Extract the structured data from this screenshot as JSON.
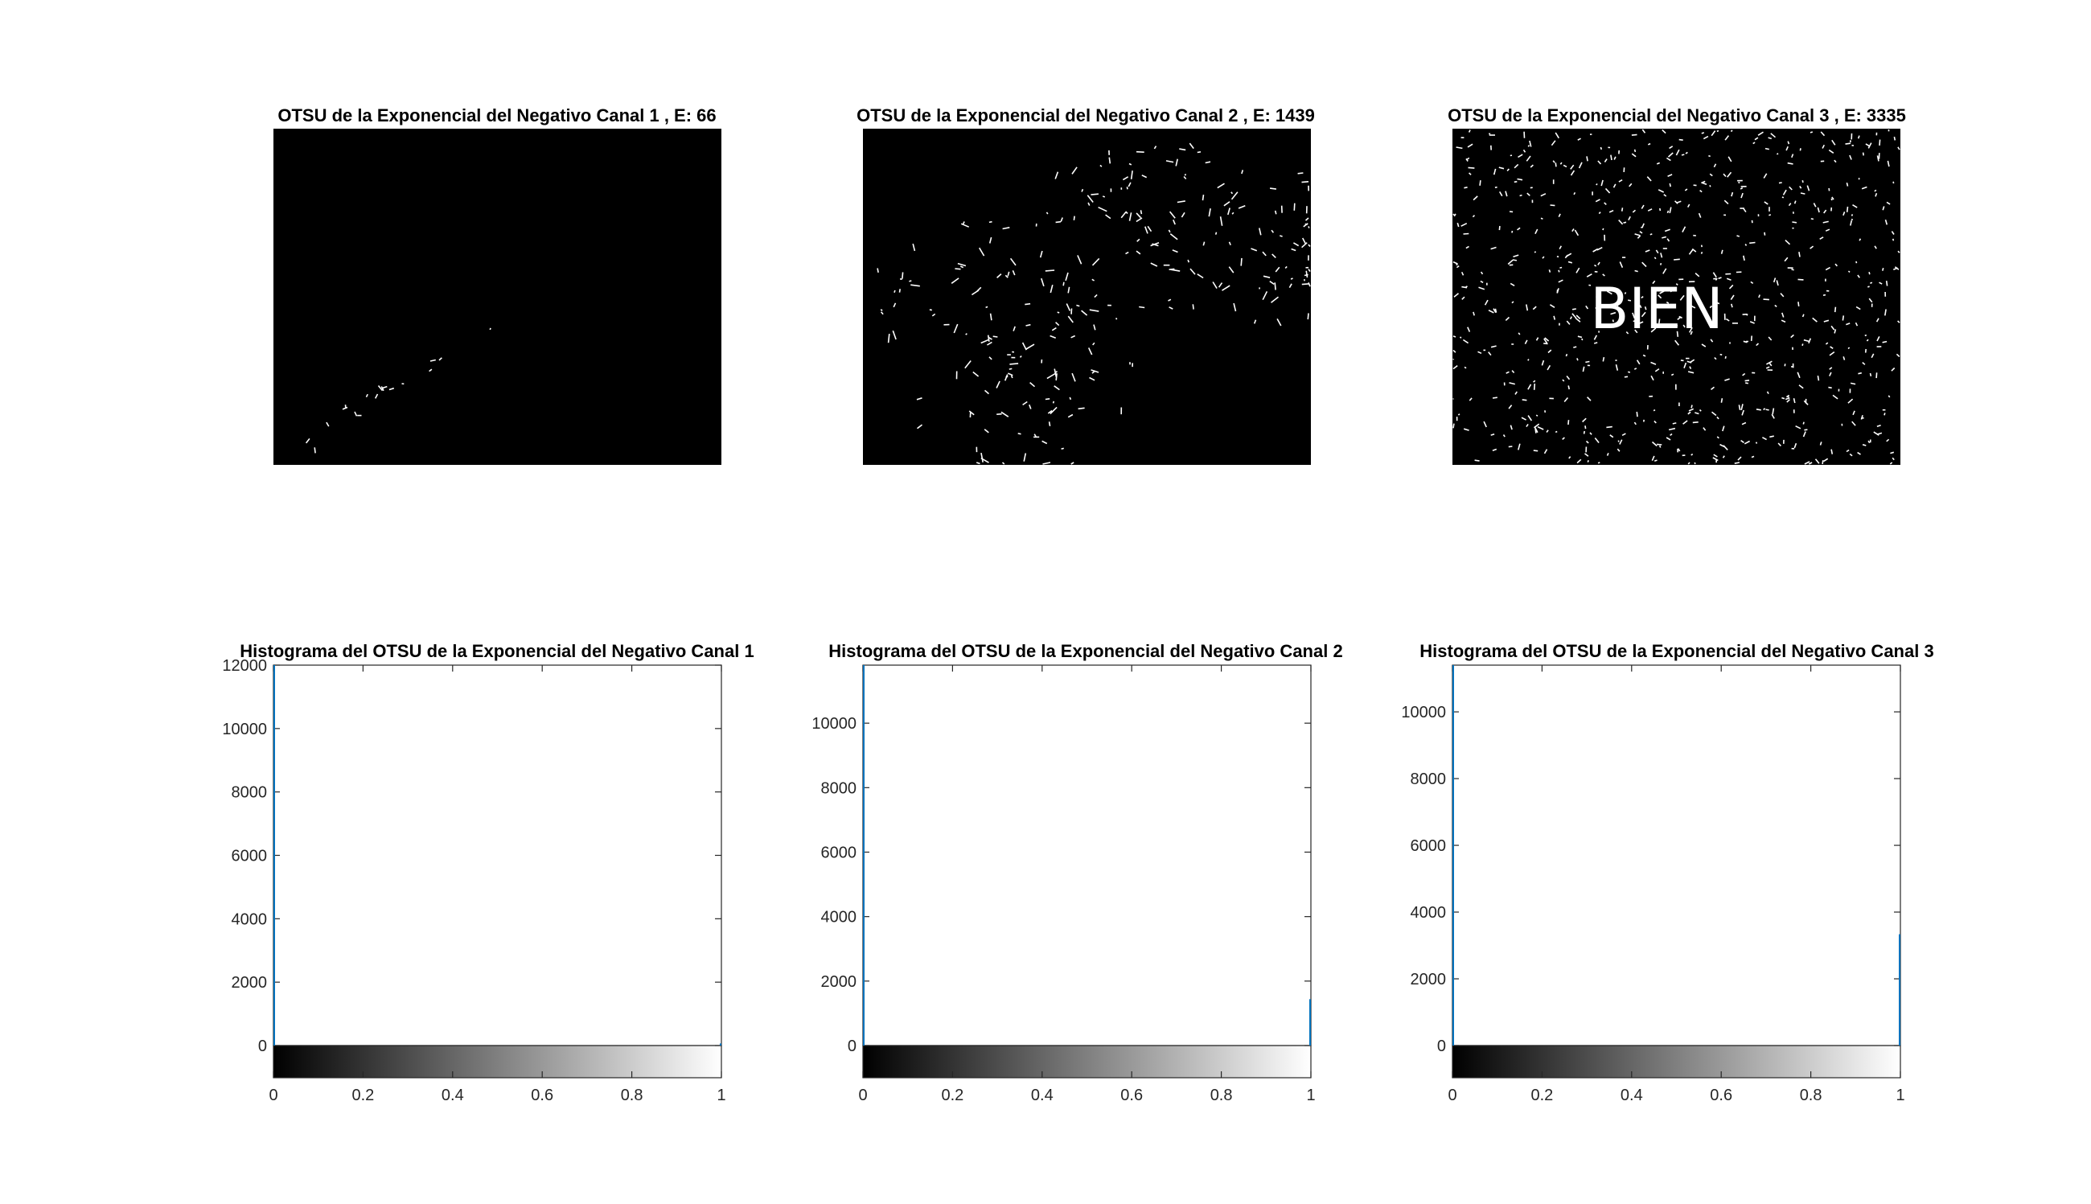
{
  "images": [
    {
      "title": "OTSU de la Exponencial del Negativo Canal 1 , E: 66",
      "density": 0.0015,
      "overlay_text": ""
    },
    {
      "title": "OTSU de la Exponencial del Negativo Canal 2 , E: 1439",
      "density": 0.022,
      "overlay_text": ""
    },
    {
      "title": "OTSU de la Exponencial del Negativo Canal 3 , E: 3335",
      "density": 0.06,
      "overlay_text": "BIEN"
    }
  ],
  "chart_data": [
    {
      "type": "bar",
      "title": "Histograma del OTSU de la Exponencial del Negativo Canal 1",
      "xlabel": "",
      "ylabel": "",
      "xlim": [
        0,
        1
      ],
      "ylim": [
        0,
        12000
      ],
      "xticks": [
        "0",
        "0.2",
        "0.4",
        "0.6",
        "0.8",
        "1"
      ],
      "yticks": [
        "0",
        "2000",
        "4000",
        "6000",
        "8000",
        "10000",
        "12000"
      ],
      "x": [
        0,
        1
      ],
      "values": [
        12000,
        66
      ],
      "colorbar": "gray"
    },
    {
      "type": "bar",
      "title": "Histograma del OTSU de la Exponencial del Negativo Canal 2",
      "xlabel": "",
      "ylabel": "",
      "xlim": [
        0,
        1
      ],
      "ylim": [
        0,
        11800
      ],
      "xticks": [
        "0",
        "0.2",
        "0.4",
        "0.6",
        "0.8",
        "1"
      ],
      "yticks": [
        "0",
        "2000",
        "4000",
        "6000",
        "8000",
        "10000"
      ],
      "x": [
        0,
        1
      ],
      "values": [
        11800,
        1439
      ],
      "colorbar": "gray"
    },
    {
      "type": "bar",
      "title": "Histograma del OTSU de la Exponencial del Negativo Canal 3",
      "xlabel": "",
      "ylabel": "",
      "xlim": [
        0,
        1
      ],
      "ylim": [
        0,
        11400
      ],
      "xticks": [
        "0",
        "0.2",
        "0.4",
        "0.6",
        "0.8",
        "1"
      ],
      "yticks": [
        "0",
        "2000",
        "4000",
        "6000",
        "8000",
        "10000"
      ],
      "x": [
        0,
        1
      ],
      "values": [
        11400,
        3335
      ],
      "colorbar": "gray"
    }
  ],
  "colors": {
    "series": "#0072BD",
    "axis": "#262626",
    "image_bg": "#000000",
    "foreground": "#ffffff"
  }
}
